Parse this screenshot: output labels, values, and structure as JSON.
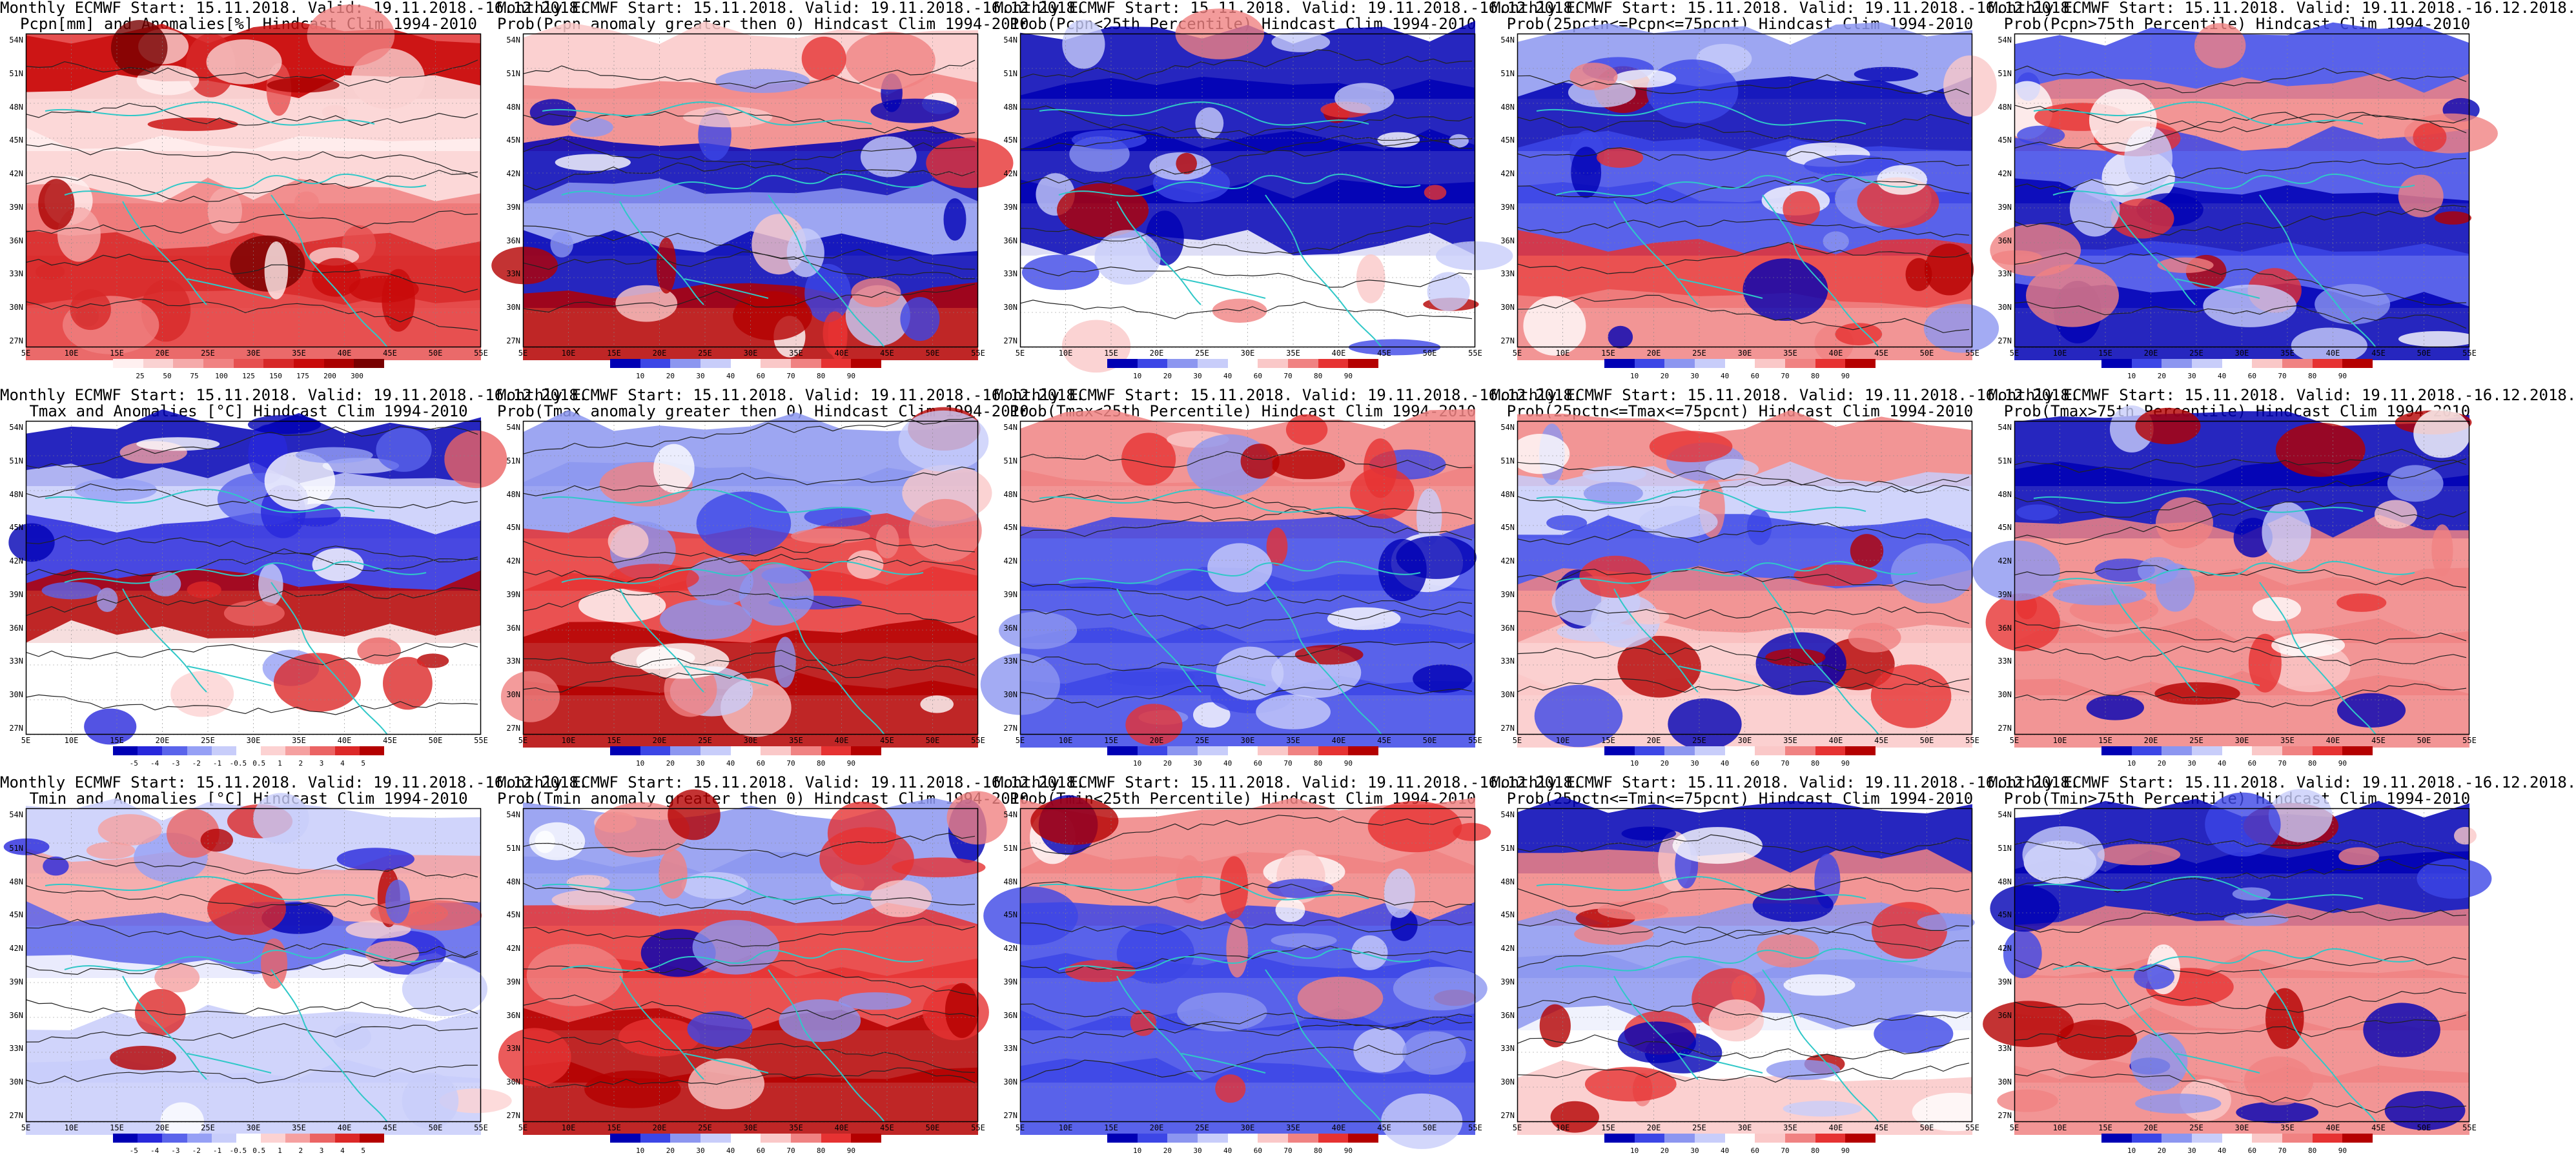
{
  "title_line1_common": "Monthly ECMWF Start: 15.11.2018. Valid: 19.11.2018.-16.12.2018.",
  "lat_labels": [
    "54N",
    "51N",
    "48N",
    "45N",
    "42N",
    "39N",
    "36N",
    "33N",
    "30N",
    "27N"
  ],
  "lon_labels": [
    "5E",
    "10E",
    "15E",
    "20E",
    "25E",
    "30E",
    "35E",
    "40E",
    "45E",
    "50E",
    "55E"
  ],
  "colors": {
    "coast": "#30c8c8",
    "contour": "#222222",
    "accent_blue": "#0000c8",
    "accent_red": "#c80000"
  },
  "scales": {
    "prob": [
      "10",
      "20",
      "30",
      "40",
      "60",
      "70",
      "80",
      "90"
    ],
    "pcpn": [
      "25",
      "50",
      "75",
      "100",
      "125",
      "150",
      "175",
      "200",
      "300"
    ],
    "temp": [
      "-5",
      "-4",
      "-3",
      "-2",
      "-1",
      "-0.5",
      "0.5",
      "1",
      "2",
      "3",
      "4",
      "5"
    ]
  },
  "panels": [
    {
      "l1": "Monthly ECMWF Start: 15.11.2018. Valid: 19.11.2018.-16.12.2018.",
      "l2": "Pcpn[mm] and Anomalies[%] Hindcast Clim 1994-2010",
      "scale": "pcpn",
      "var": "pcpn"
    },
    {
      "l1": "Monthly ECMWF Start: 15.11.2018. Valid: 19.11.2018.-16.12.2018.",
      "l2": "Prob(Pcpn anomaly greater then 0) Hindcast Clim 1994-2010",
      "scale": "prob",
      "var": "pcpn"
    },
    {
      "l1": "Monthly ECMWF Start: 15.11.2018. Valid: 19.11.2018.-16.12.2018.",
      "l2": "Prob(Pcpn<25th Percentile) Hindcast Clim 1994-2010",
      "scale": "prob",
      "var": "pcpn_low"
    },
    {
      "l1": "Monthly ECMWF Start: 15.11.2018. Valid: 19.11.2018.-16.12.2018.",
      "l2": "Prob(25pctn<=Pcpn<=75pcnt) Hindcast Clim 1994-2010",
      "scale": "prob",
      "var": "pcpn_mid"
    },
    {
      "l1": "Monthly ECMWF Start: 15.11.2018. Valid: 19.11.2018.-16.12.2018.",
      "l2": "Prob(Pcpn>75th Percentile) Hindcast Clim 1994-2010",
      "scale": "prob",
      "var": "pcpn_high"
    },
    {
      "l1": "Monthly ECMWF Start: 15.11.2018. Valid: 19.11.2018.-16.12.2018.",
      "l2": "Tmax and Anomalies [°C] Hindcast Clim 1994-2010",
      "scale": "temp",
      "var": "tmax"
    },
    {
      "l1": "Monthly ECMWF Start: 15.11.2018. Valid: 19.11.2018.-16.12.2018.",
      "l2": "Prob(Tmax anomaly greater then 0) Hindcast Clim 1994-2010",
      "scale": "prob",
      "var": "tmax_p"
    },
    {
      "l1": "Monthly ECMWF Start: 15.11.2018. Valid: 19.11.2018.-16.12.2018.",
      "l2": "Prob(Tmax<25th Percentile) Hindcast Clim 1994-2010",
      "scale": "prob",
      "var": "tmax_low"
    },
    {
      "l1": "Monthly ECMWF Start: 15.11.2018. Valid: 19.11.2018.-16.12.2018.",
      "l2": "Prob(25pctn<=Tmax<=75pcnt) Hindcast Clim 1994-2010",
      "scale": "prob",
      "var": "tmax_mid"
    },
    {
      "l1": "Monthly ECMWF Start: 15.11.2018. Valid: 19.11.2018.-16.12.2018.",
      "l2": "Prob(Tmax>75th Percentile) Hindcast Clim 1994-2010",
      "scale": "prob",
      "var": "tmax_high"
    },
    {
      "l1": "Monthly ECMWF Start: 15.11.2018. Valid: 19.11.2018.-16.12.2018.",
      "l2": "Tmin and Anomalies [°C] Hindcast Clim 1994-2010",
      "scale": "temp",
      "var": "tmin"
    },
    {
      "l1": "Monthly ECMWF Start: 15.11.2018. Valid: 19.11.2018.-16.12.2018.",
      "l2": "Prob(Tmin anomaly greater then 0) Hindcast Clim 1994-2010",
      "scale": "prob",
      "var": "tmin_p"
    },
    {
      "l1": "Monthly ECMWF Start: 15.11.2018. Valid: 19.11.2018.-16.12.2018.",
      "l2": "Prob(Tmin<25th Percentile) Hindcast Clim 1994-2010",
      "scale": "prob",
      "var": "tmin_low"
    },
    {
      "l1": "Monthly ECMWF Start: 15.11.2018. Valid: 19.11.2018.-16.12.2018.",
      "l2": "Prob(25pctn<=Tmin<=75pcnt) Hindcast Clim 1994-2010",
      "scale": "prob",
      "var": "tmin_mid"
    },
    {
      "l1": "Monthly ECMWF Start: 15.11.2018. Valid: 19.11.2018.-16.12.2018.",
      "l2": "Prob(Tmin>75th Percentile) Hindcast Clim 1994-2010",
      "scale": "prob",
      "var": "tmin_high"
    }
  ]
}
